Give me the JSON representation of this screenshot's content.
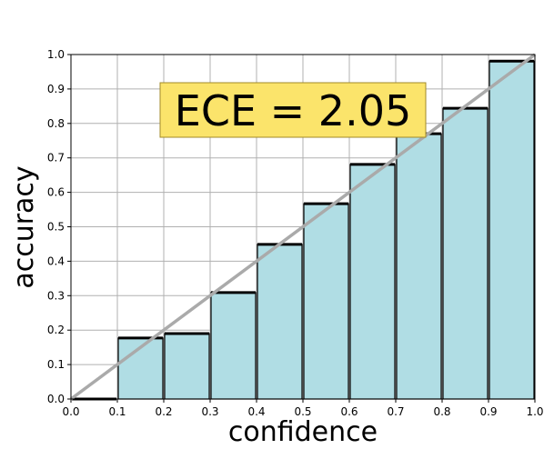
{
  "chart_data": {
    "type": "histogram",
    "x_label": "confidence",
    "y_label": "accuracy",
    "annotation": "ECE = 2.05",
    "bins": [
      0,
      0.1,
      0.2,
      0.3,
      0.4,
      0.5,
      0.6,
      0.7,
      0.8,
      0.9,
      1
    ],
    "values": [
      0,
      0.177,
      0.19,
      0.309,
      0.449,
      0.567,
      0.681,
      0.77,
      0.844,
      0.981
    ],
    "color": "#b0dde4",
    "xlim": [
      0,
      1
    ],
    "ylim": [
      0,
      1
    ],
    "xticks": [
      {
        "value": 0,
        "label": "0.0"
      },
      0.1,
      0.2,
      0.3,
      0.4,
      0.5,
      0.6,
      0.7,
      0.8,
      0.9,
      {
        "value": 1,
        "label": "1.0"
      }
    ],
    "yticks": [
      {
        "value": 0,
        "label": "0.0"
      },
      0.1,
      0.2,
      0.3,
      0.4,
      0.5,
      0.6,
      0.7,
      0.8,
      0.9,
      {
        "value": 1,
        "label": "1.0"
      }
    ],
    "grid": true
  }
}
